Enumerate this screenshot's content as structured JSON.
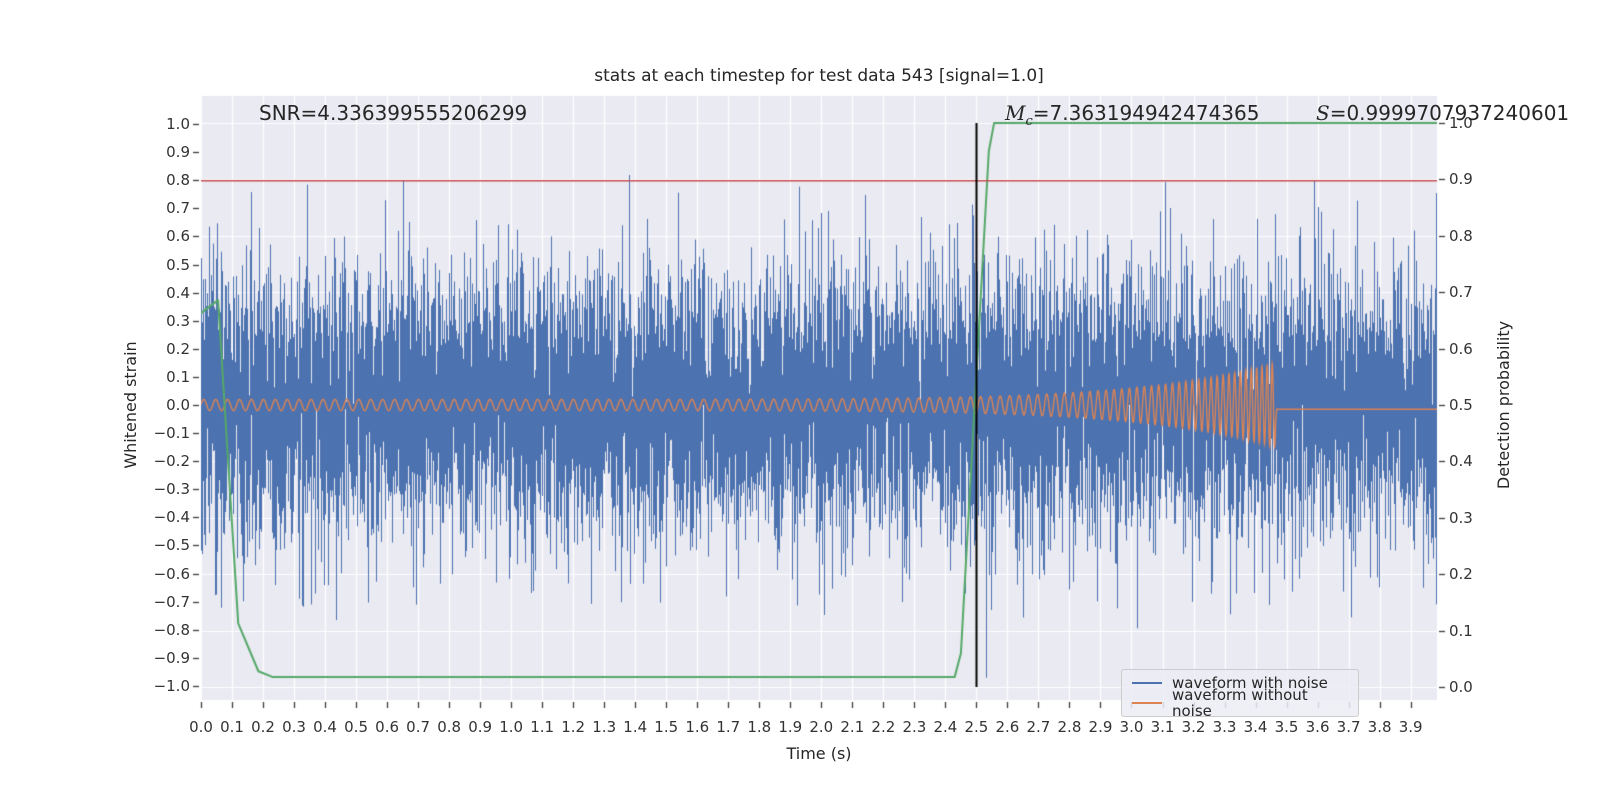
{
  "title": "stats at each timestep for test data 543 [signal=1.0]",
  "annotations": {
    "snr": "SNR=4.336399555206299",
    "mc_symbol": "M",
    "mc_sub": "c",
    "mc_value": "=7.363194942474365",
    "s_symbol": "S",
    "s_value": "=0.9999707937240601"
  },
  "axes": {
    "x_label": "Time (s)",
    "y_left_label": "Whitened strain",
    "y_right_label": "Detection probability",
    "x_ticks": [
      "0.0",
      "0.1",
      "0.2",
      "0.3",
      "0.4",
      "0.5",
      "0.6",
      "0.7",
      "0.8",
      "0.9",
      "1.0",
      "1.1",
      "1.2",
      "1.3",
      "1.4",
      "1.5",
      "1.6",
      "1.7",
      "1.8",
      "1.9",
      "2.0",
      "2.1",
      "2.2",
      "2.3",
      "2.4",
      "2.5",
      "2.6",
      "2.7",
      "2.8",
      "2.9",
      "3.0",
      "3.1",
      "3.2",
      "3.3",
      "3.4",
      "3.5",
      "3.6",
      "3.7",
      "3.8",
      "3.9"
    ],
    "y_left_ticks": [
      "1.0",
      "0.9",
      "0.8",
      "0.7",
      "0.6",
      "0.5",
      "0.4",
      "0.3",
      "0.2",
      "0.1",
      "0.0",
      "−0.1",
      "−0.2",
      "−0.3",
      "−0.4",
      "−0.5",
      "−0.6",
      "−0.7",
      "−0.8",
      "−0.9",
      "−1.0"
    ],
    "y_right_ticks": [
      "1.0",
      "0.9",
      "0.8",
      "0.7",
      "0.6",
      "0.5",
      "0.4",
      "0.3",
      "0.2",
      "0.1",
      "0.0"
    ]
  },
  "legend": {
    "items": [
      {
        "label": "waveform with noise",
        "color": "#4c72b0"
      },
      {
        "label": "waveform without noise",
        "color": "#dd8452"
      }
    ]
  },
  "chart_data": {
    "type": "line",
    "title": "stats at each timestep for test data 543 [signal=1.0]",
    "xlabel": "Time (s)",
    "ylabel_left": "Whitened strain",
    "ylabel_right": "Detection probability",
    "x_range": [
      0,
      3.985
    ],
    "y_left_range": [
      -1.05,
      1.1
    ],
    "y_right_range": [
      -0.023,
      1.048
    ],
    "background": "#eaeaf2",
    "grid_color": "#ffffff",
    "stats": {
      "snr": 4.336399555206299,
      "chirp_mass": 7.363194942474365,
      "score": 0.9999707937240601,
      "signal": 1.0,
      "test_index": 543
    },
    "series": [
      {
        "name": "waveform with noise",
        "kind": "noise",
        "axis": "left",
        "color": "#4c72b0",
        "sigma": 0.24,
        "samples_per_column": 8,
        "seed": 20543
      },
      {
        "name": "waveform without noise",
        "kind": "chirp",
        "axis": "left",
        "color": "#dd8452",
        "t_start": 0,
        "t_merger": 3.465,
        "amp0": 0.02,
        "amp_peak": 0.15,
        "amp_pow": 8,
        "f0": 26,
        "f1": 62,
        "f_pow": 6,
        "post_level": -0.015
      },
      {
        "name": "detection probability",
        "kind": "line",
        "axis": "right",
        "color": "#55a868",
        "points": [
          [
            0,
            0.663
          ],
          [
            0.055,
            0.686
          ],
          [
            0.12,
            0.113
          ],
          [
            0.185,
            0.028
          ],
          [
            0.23,
            0.018
          ],
          [
            2.43,
            0.018
          ],
          [
            2.45,
            0.06
          ],
          [
            2.54,
            0.95
          ],
          [
            2.557,
            1.0
          ],
          [
            3.985,
            1.0
          ]
        ]
      },
      {
        "name": "detection threshold",
        "kind": "hline",
        "axis": "left",
        "color": "#c44e52",
        "value": 0.8
      },
      {
        "name": "event marker",
        "kind": "vline",
        "axis": "right",
        "color": "#000000",
        "t": 2.5,
        "span": [
          0,
          1
        ]
      }
    ]
  }
}
